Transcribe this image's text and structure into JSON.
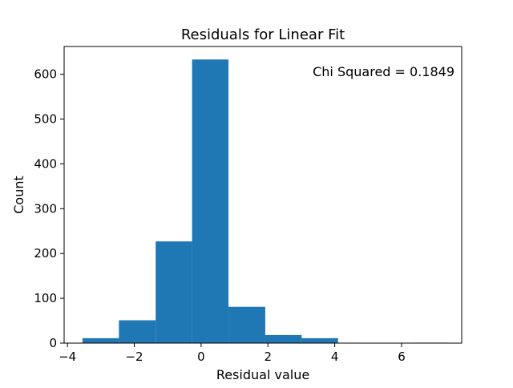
{
  "chart_data": {
    "type": "bar",
    "title": "Residuals for Linear Fit",
    "xlabel": "Residual value",
    "ylabel": "Count",
    "annotation": "Chi Squared = 0.1849",
    "xlim": [
      -4.1,
      7.8
    ],
    "ylim": [
      0,
      662
    ],
    "x_ticks": [
      -4,
      -2,
      0,
      2,
      4,
      6
    ],
    "x_tick_labels": [
      "−4",
      "−2",
      "0",
      "2",
      "4",
      "6"
    ],
    "y_ticks": [
      0,
      100,
      200,
      300,
      400,
      500,
      600
    ],
    "y_tick_labels": [
      "0",
      "100",
      "200",
      "300",
      "400",
      "500",
      "600"
    ],
    "bin_edges": [
      -3.55,
      -2.46,
      -1.36,
      -0.27,
      0.82,
      1.92,
      3.01,
      4.1,
      5.2,
      6.29,
      7.39
    ],
    "values": [
      11,
      51,
      227,
      633,
      81,
      18,
      11,
      0,
      0,
      1
    ],
    "grid": false,
    "legend": "none",
    "bar_color": "#1f77b4"
  }
}
